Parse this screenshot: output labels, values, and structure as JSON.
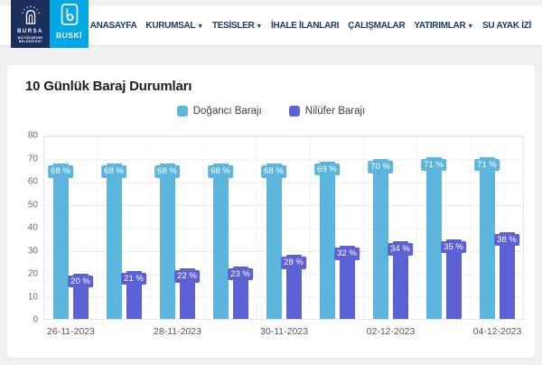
{
  "header": {
    "logo_bursa": {
      "line1": "BURSA",
      "line2": "BÜYÜKŞEHİR",
      "line3": "BELEDİYESİ"
    },
    "logo_buski": {
      "label": "BUSKİ"
    },
    "nav": [
      {
        "label": "ANASAYFA",
        "dropdown": false
      },
      {
        "label": "KURUMSAL",
        "dropdown": true
      },
      {
        "label": "TESİSLER",
        "dropdown": true
      },
      {
        "label": "İHALE İLANLARI",
        "dropdown": false
      },
      {
        "label": "ÇALIŞMALAR",
        "dropdown": false
      },
      {
        "label": "YATIRIMLAR",
        "dropdown": true
      },
      {
        "label": "SU AYAK İZİ",
        "dropdown": false
      }
    ]
  },
  "main": {
    "title": "10 Günlük Baraj Durumları"
  },
  "chart_data": {
    "type": "bar",
    "title": "10 Günlük Baraj Durumları",
    "categories": [
      "26-11-2023",
      "",
      "28-11-2023",
      "",
      "30-11-2023",
      "",
      "02-12-2023",
      "",
      "04-12-2023"
    ],
    "series": [
      {
        "name": "Doğancı Barajı",
        "color": "#5bb5dc",
        "unit": "%",
        "values": [
          68,
          68,
          68,
          68,
          68,
          69,
          70,
          71,
          71
        ]
      },
      {
        "name": "Nilüfer Barajı",
        "color": "#5c61d6",
        "unit": "%",
        "values": [
          20,
          21,
          22,
          23,
          28,
          32,
          34,
          35,
          38
        ]
      }
    ],
    "ylim": [
      0,
      80
    ],
    "ytick_step": 10,
    "grid": true,
    "legend_position": "top",
    "data_label_format": "{value} %"
  },
  "colors": {
    "page_bg": "#f0f0f1",
    "header_bg": "#ffffff",
    "nav_text": "#1b3a6c",
    "card_bg": "#ffffff",
    "logo_bursa_bg": "#1c2f5c",
    "logo_buski_bg": "#00a7e4",
    "series_doganci": "#5bb5dc",
    "series_nilufer": "#5c61d6",
    "gridline": "#ececef"
  }
}
